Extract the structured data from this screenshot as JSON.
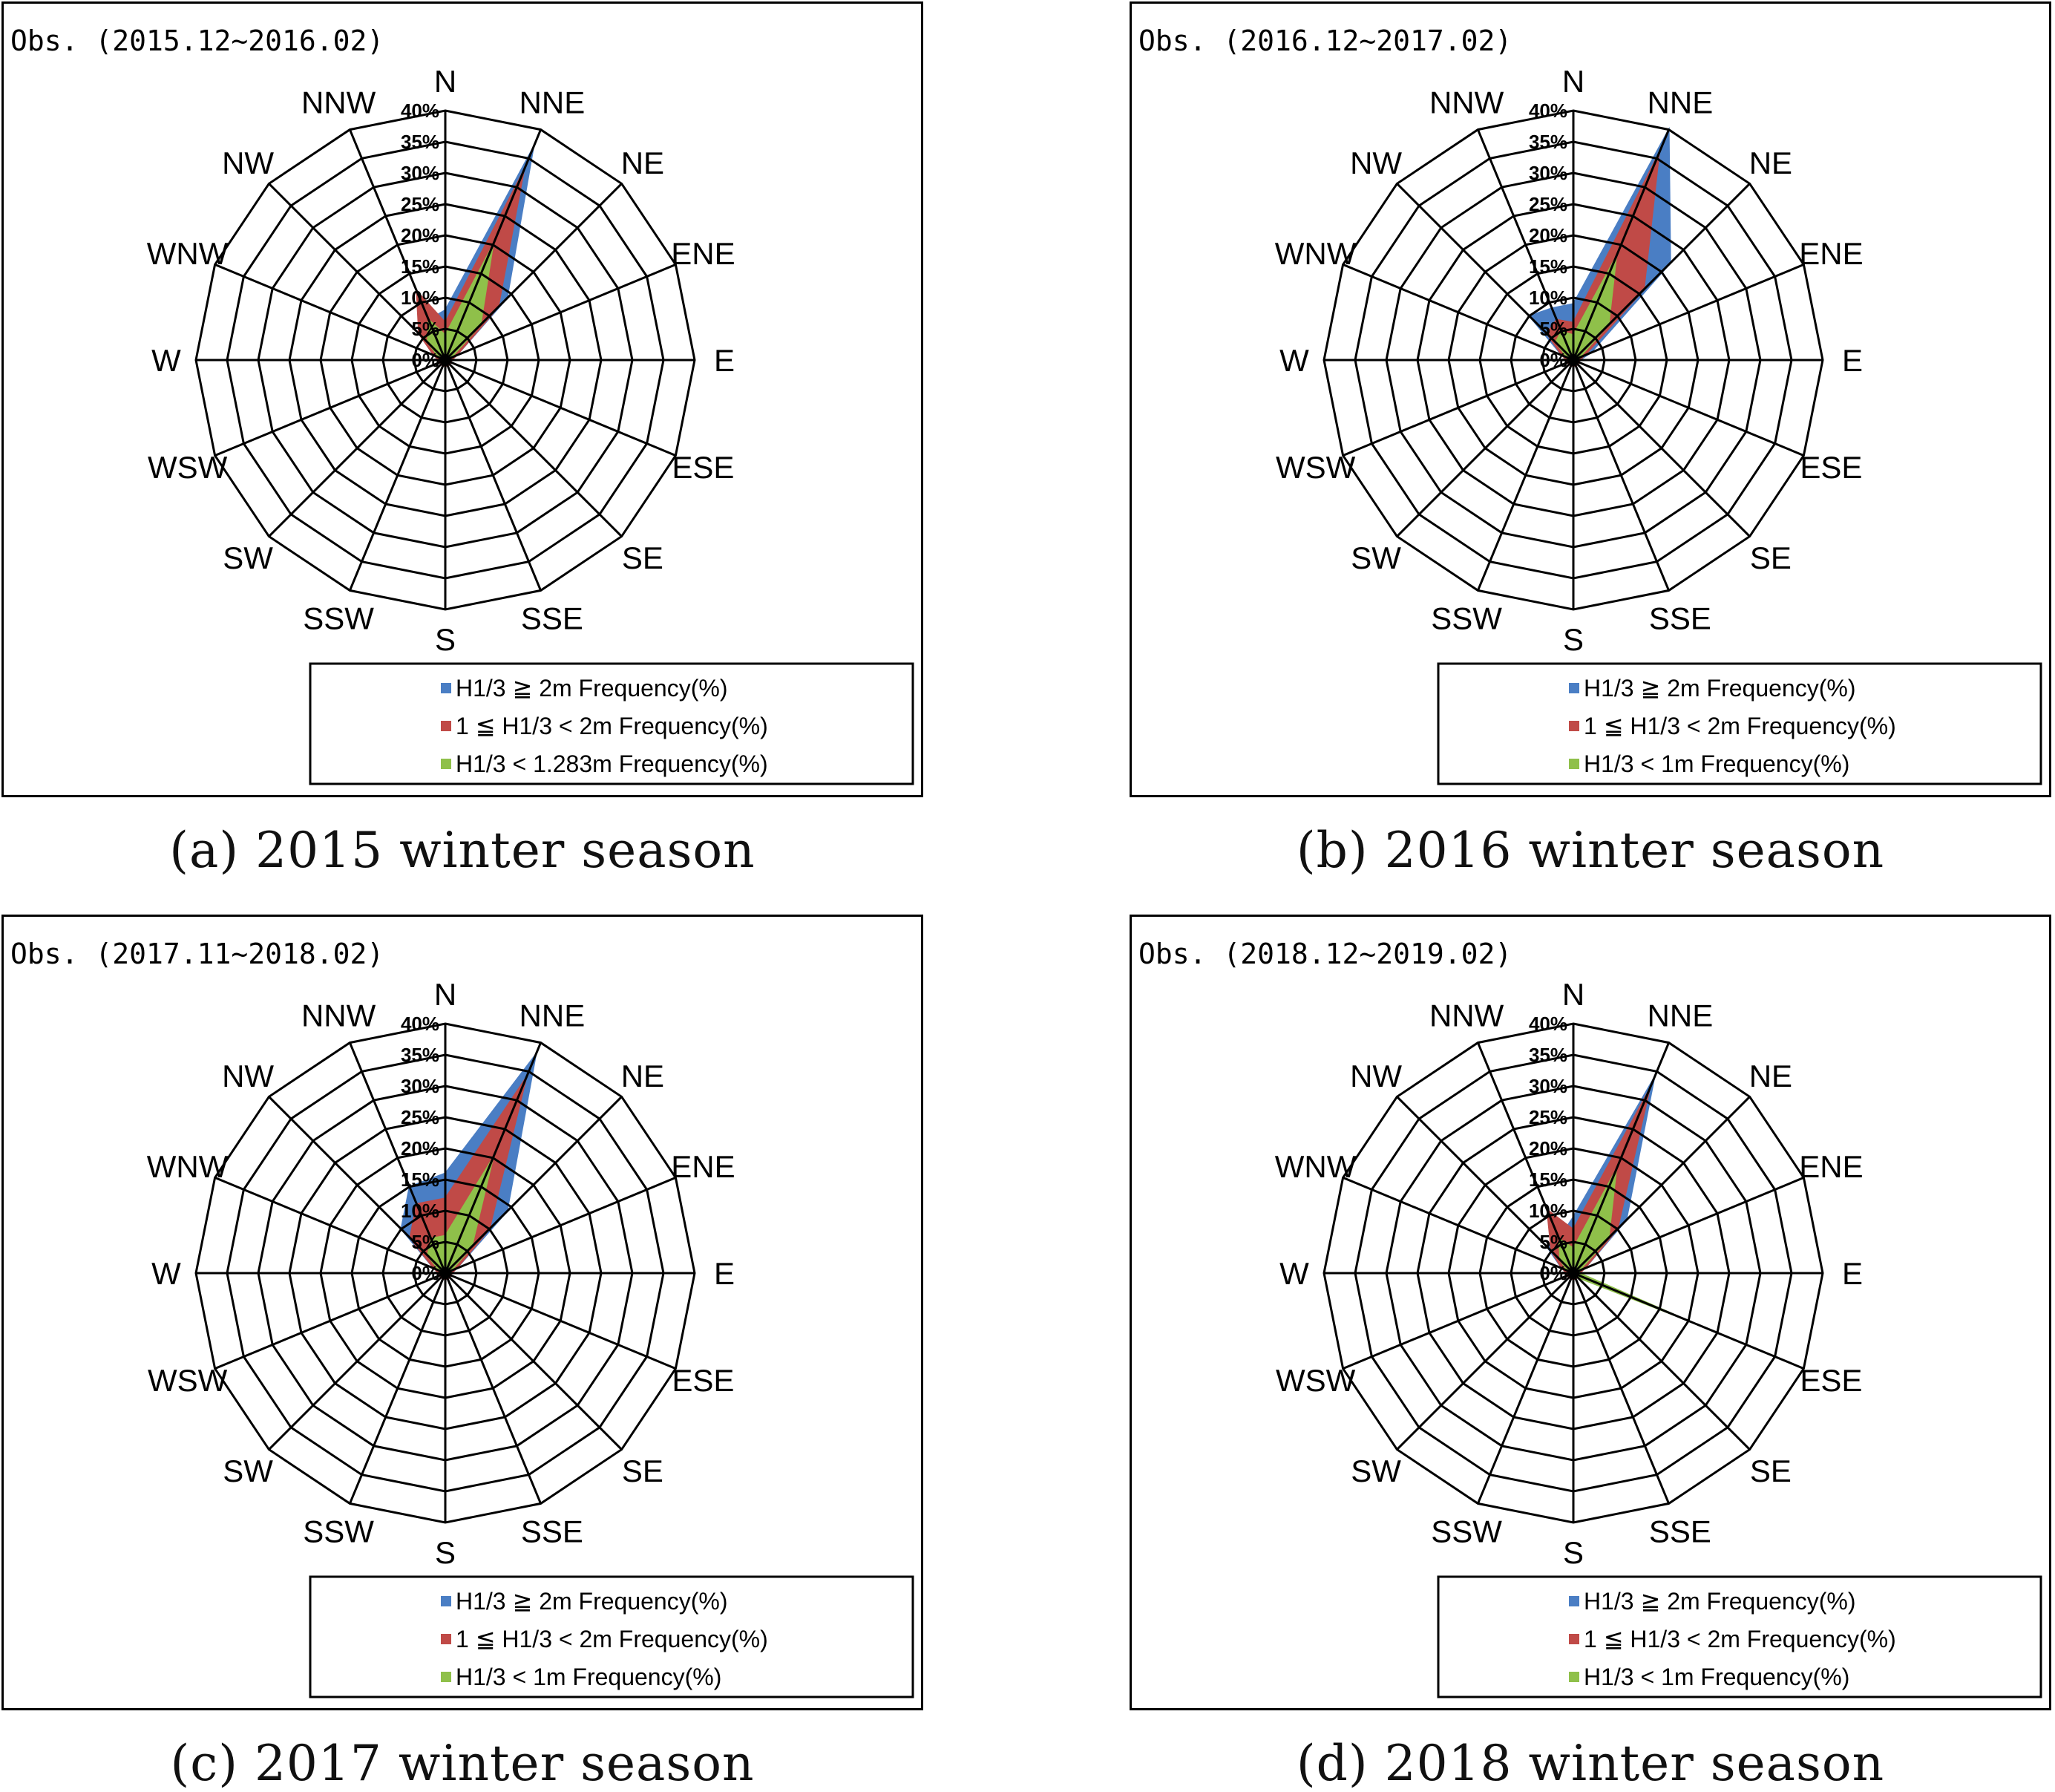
{
  "directions": [
    "N",
    "NNE",
    "NE",
    "ENE",
    "E",
    "ESE",
    "SE",
    "SSE",
    "S",
    "SSW",
    "SW",
    "WSW",
    "W",
    "WNW",
    "NW",
    "NNW"
  ],
  "radial_ticks": [
    "0%",
    "5%",
    "10%",
    "15%",
    "20%",
    "25%",
    "30%",
    "35%",
    "40%"
  ],
  "colors": {
    "blue": "#4a7ec4",
    "red": "#c04a47",
    "green": "#8fc04a",
    "grid": "#000000"
  },
  "chart_data": [
    {
      "type": "radar",
      "title": "Obs. (2015.12~2016.02)",
      "caption": "(a) 2015 winter season",
      "rlim": [
        0,
        40
      ],
      "categories": [
        "N",
        "NNE",
        "NE",
        "ENE",
        "E",
        "ESE",
        "SE",
        "SSE",
        "S",
        "SSW",
        "SW",
        "WSW",
        "W",
        "WNW",
        "NW",
        "NNW"
      ],
      "legend": "bottom",
      "series": [
        {
          "name": "H1/3 ≧ 2m Frequency(%)",
          "color": "#4a7ec4",
          "values": [
            8,
            37,
            14,
            2,
            1,
            1,
            1,
            1,
            1,
            1,
            1,
            1,
            1,
            2,
            6,
            7
          ]
        },
        {
          "name": "1 ≦ H1/3 < 2m Frequency(%)",
          "color": "#c04a47",
          "values": [
            6,
            33,
            12,
            2,
            1,
            1,
            1,
            1,
            1,
            1,
            1,
            1,
            1,
            2,
            6,
            12
          ]
        },
        {
          "name": "H1/3 < 1.283m Frequency(%)",
          "color": "#8fc04a",
          "values": [
            4,
            20,
            8,
            1,
            0.5,
            0.5,
            0.5,
            0.5,
            0.5,
            0.5,
            0.5,
            0.5,
            0.5,
            1,
            4,
            7
          ]
        }
      ]
    },
    {
      "type": "radar",
      "title": "Obs. (2016.12~2017.02)",
      "caption": "(b) 2016 winter season",
      "rlim": [
        0,
        40
      ],
      "categories": [
        "N",
        "NNE",
        "NE",
        "ENE",
        "E",
        "ESE",
        "SE",
        "SSE",
        "S",
        "SSW",
        "SW",
        "WSW",
        "W",
        "WNW",
        "NW",
        "NNW"
      ],
      "legend": "bottom",
      "series": [
        {
          "name": "H1/3 ≧ 2m Frequency(%)",
          "color": "#4a7ec4",
          "values": [
            9,
            40,
            22,
            3,
            1,
            1,
            1,
            1,
            1,
            1,
            1,
            1,
            1,
            2,
            10,
            9
          ]
        },
        {
          "name": "1 ≦ H1/3 < 2m Frequency(%)",
          "color": "#c04a47",
          "values": [
            6,
            36,
            16,
            2,
            1,
            1,
            1,
            1,
            1,
            1,
            1,
            1,
            1,
            2,
            6,
            7
          ]
        },
        {
          "name": "H1/3 < 1m Frequency(%)",
          "color": "#8fc04a",
          "values": [
            4,
            18,
            8,
            1,
            0.5,
            0.5,
            0.5,
            0.5,
            0.5,
            0.5,
            0.5,
            0.5,
            0.5,
            1,
            4,
            5
          ]
        }
      ]
    },
    {
      "type": "radar",
      "title": "Obs. (2017.11~2018.02)",
      "caption": "(c) 2017 winter season",
      "rlim": [
        0,
        40
      ],
      "categories": [
        "N",
        "NNE",
        "NE",
        "ENE",
        "E",
        "ESE",
        "SE",
        "SSE",
        "S",
        "SSW",
        "SW",
        "WSW",
        "W",
        "WNW",
        "NW",
        "NNW"
      ],
      "legend": "bottom",
      "series": [
        {
          "name": "H1/3 ≧ 2m Frequency(%)",
          "color": "#4a7ec4",
          "values": [
            16,
            38,
            14,
            2,
            1,
            1,
            1,
            1,
            1,
            1,
            1,
            1,
            1,
            2,
            10,
            15
          ]
        },
        {
          "name": "1 ≦ H1/3 < 2m Frequency(%)",
          "color": "#c04a47",
          "values": [
            12,
            34,
            10,
            2,
            1,
            1,
            1,
            1,
            1,
            1,
            1,
            1,
            1,
            2,
            8,
            12
          ]
        },
        {
          "name": "H1/3 < 1m Frequency(%)",
          "color": "#8fc04a",
          "values": [
            6,
            20,
            6,
            1,
            0.5,
            0.5,
            0.5,
            0.5,
            0.5,
            0.5,
            0.5,
            0.5,
            0.5,
            1,
            4,
            6
          ]
        }
      ]
    },
    {
      "type": "radar",
      "title": "Obs. (2018.12~2019.02)",
      "caption": "(d) 2018 winter season",
      "rlim": [
        0,
        40
      ],
      "categories": [
        "N",
        "NNE",
        "NE",
        "ENE",
        "E",
        "ESE",
        "SE",
        "SSE",
        "S",
        "SSW",
        "SW",
        "WSW",
        "W",
        "WNW",
        "NW",
        "NNW"
      ],
      "legend": "bottom",
      "series": [
        {
          "name": "H1/3 ≧ 2m Frequency(%)",
          "color": "#4a7ec4",
          "values": [
            9,
            34,
            12,
            2,
            1,
            1,
            1,
            1,
            1,
            1,
            1,
            1,
            1,
            2,
            6,
            6
          ]
        },
        {
          "name": "1 ≦ H1/3 < 2m Frequency(%)",
          "color": "#c04a47",
          "values": [
            7,
            32,
            10,
            2,
            1,
            1,
            1,
            1,
            1,
            1,
            1,
            1,
            1,
            2,
            5,
            11
          ]
        },
        {
          "name": "H1/3 < 1m Frequency(%)",
          "color": "#8fc04a",
          "values": [
            4,
            18,
            8,
            1,
            1,
            20,
            1,
            0.5,
            0.5,
            0.5,
            0.5,
            0.5,
            0.5,
            1,
            3,
            6
          ]
        }
      ]
    }
  ]
}
